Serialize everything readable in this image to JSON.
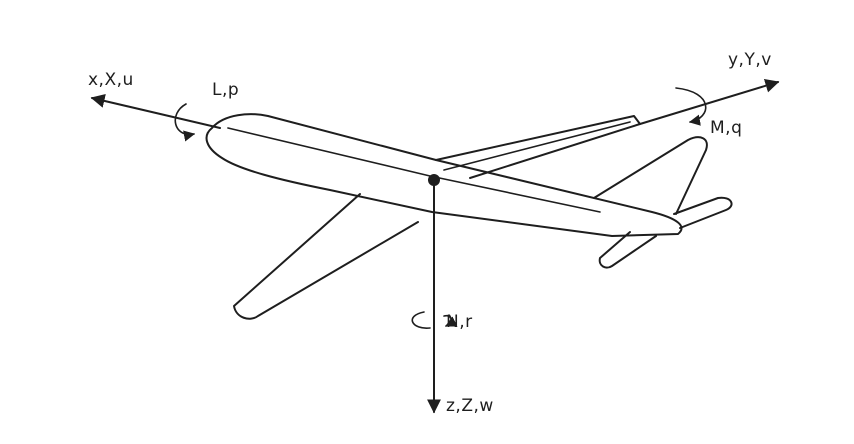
{
  "axes": {
    "x": {
      "label": "x,X,u",
      "moment_label": "L,p"
    },
    "y": {
      "label": "y,Y,v",
      "moment_label": "M,q"
    },
    "z": {
      "label": "z,Z,w",
      "moment_label": "N,r"
    }
  },
  "colors": {
    "ink": "#1e1e1e",
    "background": "#ffffff"
  }
}
